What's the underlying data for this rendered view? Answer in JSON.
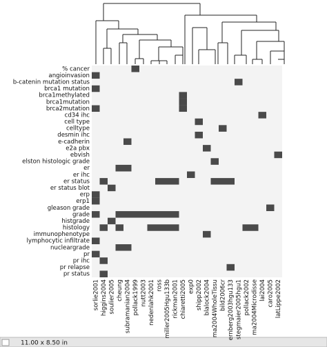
{
  "chart_data": {
    "type": "heatmap",
    "rows": [
      "% cancer",
      "angioinvasion",
      "b-catenin mutation status",
      "brca1 mutation",
      "brca1methylated",
      "brca1mutation",
      "brca2mutation",
      "cd34 ihc",
      "cell type",
      "celltype",
      "desmin ihc",
      "e-cadherin",
      "e2a pbx",
      "ebvish",
      "elston histologic grade",
      "er",
      "er ihc",
      "er status",
      "er status blot",
      "erp",
      "erp1",
      "gleason grade",
      "grade",
      "histgrade",
      "histology",
      "immunophenotype",
      "lymphocytic infiltrate",
      "nucleargrade",
      "pr",
      "pr ihc",
      "pr relapse",
      "pr status"
    ],
    "columns": [
      "sorlie2001",
      "higgins2004",
      "soulier2005",
      "cheung",
      "subramanian2004",
      "pollack1999",
      "nutt2003",
      "nedenlahk2001",
      "ross",
      "miller2005Hgu133b",
      "rickman2001",
      "chiaretti2005",
      "exp0",
      "shipp2002",
      "blalock2004",
      "ma2004WholeTissu",
      "bild2006cr",
      "ernberg2003hgu133",
      "stegmaier2005hgu1",
      "pollack2002",
      "ma2004Microdisse",
      "lai2004",
      "caro2005",
      "latLippe2002"
    ],
    "values": [
      [
        0,
        0,
        0,
        0,
        0,
        1,
        0,
        0,
        0,
        0,
        0,
        0,
        0,
        0,
        0,
        0,
        0,
        0,
        0,
        0,
        0,
        0,
        0,
        0
      ],
      [
        1,
        0,
        0,
        0,
        0,
        0,
        0,
        0,
        0,
        0,
        0,
        0,
        0,
        0,
        0,
        0,
        0,
        0,
        0,
        0,
        0,
        0,
        0,
        0
      ],
      [
        0,
        0,
        0,
        0,
        0,
        0,
        0,
        0,
        0,
        0,
        0,
        0,
        0,
        0,
        0,
        0,
        0,
        0,
        1,
        0,
        0,
        0,
        0,
        0
      ],
      [
        1,
        0,
        0,
        0,
        0,
        0,
        0,
        0,
        0,
        0,
        0,
        0,
        0,
        0,
        0,
        0,
        0,
        0,
        0,
        0,
        0,
        0,
        0,
        0
      ],
      [
        0,
        0,
        0,
        0,
        0,
        0,
        0,
        0,
        0,
        0,
        0,
        1,
        0,
        0,
        0,
        0,
        0,
        0,
        0,
        0,
        0,
        0,
        0,
        0
      ],
      [
        0,
        0,
        0,
        0,
        0,
        0,
        0,
        0,
        0,
        0,
        0,
        1,
        0,
        0,
        0,
        0,
        0,
        0,
        0,
        0,
        0,
        0,
        0,
        0
      ],
      [
        1,
        0,
        0,
        0,
        0,
        0,
        0,
        0,
        0,
        0,
        0,
        1,
        0,
        0,
        0,
        0,
        0,
        0,
        0,
        0,
        0,
        0,
        0,
        0
      ],
      [
        0,
        0,
        0,
        0,
        0,
        0,
        0,
        0,
        0,
        0,
        0,
        0,
        0,
        0,
        0,
        0,
        0,
        0,
        0,
        0,
        0,
        1,
        0,
        0
      ],
      [
        0,
        0,
        0,
        0,
        0,
        0,
        0,
        0,
        0,
        0,
        0,
        0,
        0,
        1,
        0,
        0,
        0,
        0,
        0,
        0,
        0,
        0,
        0,
        0
      ],
      [
        0,
        0,
        0,
        0,
        0,
        0,
        0,
        0,
        0,
        0,
        0,
        0,
        0,
        0,
        0,
        0,
        1,
        0,
        0,
        0,
        0,
        0,
        0,
        0
      ],
      [
        0,
        0,
        0,
        0,
        0,
        0,
        0,
        0,
        0,
        0,
        0,
        0,
        0,
        1,
        0,
        0,
        0,
        0,
        0,
        0,
        0,
        0,
        0,
        0
      ],
      [
        0,
        0,
        0,
        0,
        1,
        0,
        0,
        0,
        0,
        0,
        0,
        0,
        0,
        0,
        0,
        0,
        0,
        0,
        0,
        0,
        0,
        0,
        0,
        0
      ],
      [
        0,
        0,
        0,
        0,
        0,
        0,
        0,
        0,
        0,
        0,
        0,
        0,
        0,
        0,
        1,
        0,
        0,
        0,
        0,
        0,
        0,
        0,
        0,
        0
      ],
      [
        0,
        0,
        0,
        0,
        0,
        0,
        0,
        0,
        0,
        0,
        0,
        0,
        0,
        0,
        0,
        0,
        0,
        0,
        0,
        0,
        0,
        0,
        0,
        1
      ],
      [
        0,
        0,
        0,
        0,
        0,
        0,
        0,
        0,
        0,
        0,
        0,
        0,
        0,
        0,
        0,
        1,
        0,
        0,
        0,
        0,
        0,
        0,
        0,
        0
      ],
      [
        0,
        0,
        0,
        1,
        1,
        0,
        0,
        0,
        0,
        0,
        0,
        0,
        0,
        0,
        0,
        0,
        0,
        0,
        0,
        0,
        0,
        0,
        0,
        0
      ],
      [
        0,
        0,
        0,
        0,
        0,
        0,
        0,
        0,
        0,
        0,
        0,
        0,
        1,
        0,
        0,
        0,
        0,
        0,
        0,
        0,
        0,
        0,
        0,
        0
      ],
      [
        0,
        1,
        0,
        0,
        0,
        0,
        0,
        0,
        1,
        1,
        1,
        0,
        0,
        0,
        0,
        1,
        1,
        1,
        0,
        0,
        0,
        0,
        0,
        0
      ],
      [
        0,
        0,
        1,
        0,
        0,
        0,
        0,
        0,
        0,
        0,
        0,
        0,
        0,
        0,
        0,
        0,
        0,
        0,
        0,
        0,
        0,
        0,
        0,
        0
      ],
      [
        1,
        0,
        0,
        0,
        0,
        0,
        0,
        0,
        0,
        0,
        0,
        0,
        0,
        0,
        0,
        0,
        0,
        0,
        0,
        0,
        0,
        0,
        0,
        0
      ],
      [
        1,
        0,
        0,
        0,
        0,
        0,
        0,
        0,
        0,
        0,
        0,
        0,
        0,
        0,
        0,
        0,
        0,
        0,
        0,
        0,
        0,
        0,
        0,
        0
      ],
      [
        0,
        0,
        0,
        0,
        0,
        0,
        0,
        0,
        0,
        0,
        0,
        0,
        0,
        0,
        0,
        0,
        0,
        0,
        0,
        0,
        0,
        0,
        1,
        0
      ],
      [
        1,
        0,
        0,
        1,
        1,
        1,
        1,
        1,
        1,
        1,
        1,
        0,
        0,
        0,
        0,
        0,
        0,
        0,
        0,
        0,
        0,
        0,
        0,
        0
      ],
      [
        0,
        0,
        1,
        0,
        0,
        0,
        0,
        0,
        0,
        0,
        0,
        0,
        0,
        0,
        0,
        0,
        0,
        0,
        0,
        0,
        0,
        0,
        0,
        0
      ],
      [
        0,
        1,
        0,
        1,
        0,
        0,
        0,
        1,
        1,
        1,
        1,
        0,
        0,
        0,
        0,
        0,
        0,
        0,
        0,
        1,
        1,
        0,
        0,
        0
      ],
      [
        0,
        0,
        0,
        0,
        0,
        0,
        0,
        0,
        0,
        0,
        0,
        0,
        0,
        0,
        1,
        0,
        0,
        0,
        0,
        0,
        0,
        0,
        0,
        0
      ],
      [
        1,
        0,
        0,
        0,
        0,
        0,
        0,
        0,
        0,
        0,
        0,
        0,
        0,
        0,
        0,
        0,
        0,
        0,
        0,
        0,
        0,
        0,
        0,
        0
      ],
      [
        0,
        0,
        0,
        1,
        1,
        0,
        0,
        0,
        0,
        0,
        0,
        0,
        0,
        0,
        0,
        0,
        0,
        0,
        0,
        0,
        0,
        0,
        0,
        0
      ],
      [
        1,
        0,
        0,
        0,
        0,
        0,
        0,
        0,
        0,
        0,
        0,
        0,
        0,
        0,
        0,
        0,
        0,
        0,
        0,
        0,
        0,
        0,
        0,
        0
      ],
      [
        0,
        1,
        0,
        0,
        0,
        0,
        0,
        0,
        0,
        0,
        0,
        0,
        0,
        0,
        0,
        0,
        0,
        0,
        0,
        0,
        0,
        0,
        0,
        0
      ],
      [
        0,
        0,
        0,
        0,
        0,
        0,
        0,
        0,
        0,
        0,
        0,
        0,
        0,
        0,
        0,
        0,
        0,
        1,
        0,
        0,
        0,
        0,
        0,
        0
      ],
      [
        0,
        1,
        0,
        0,
        0,
        0,
        0,
        0,
        0,
        0,
        0,
        0,
        0,
        0,
        0,
        0,
        0,
        0,
        0,
        0,
        0,
        0,
        0,
        0
      ]
    ],
    "colors": [
      "#f3f3f3",
      "#4a4a4a"
    ]
  },
  "status_bar": {
    "size": "11.00 x 8.50 in"
  }
}
